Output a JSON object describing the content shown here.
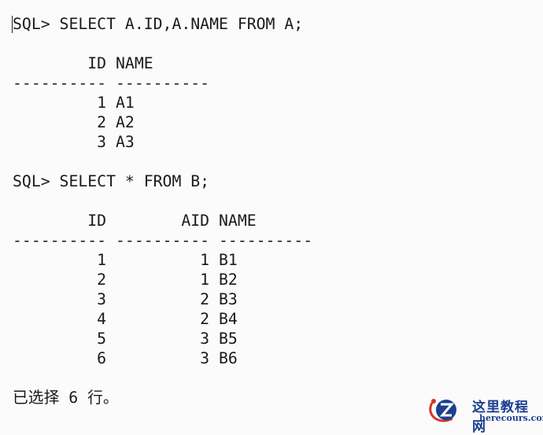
{
  "console": {
    "lines": [
      "SQL> SELECT A.ID,A.NAME FROM A;",
      "",
      "        ID NAME",
      "---------- ----------",
      "         1 A1",
      "         2 A2",
      "         3 A3",
      "",
      "SQL> SELECT * FROM B;",
      "",
      "        ID        AID NAME",
      "---------- ---------- ----------",
      "         1          1 B1",
      "         2          1 B2",
      "         3          2 B3",
      "         4          2 B4",
      "         5          3 B5",
      "         6          3 B6",
      "",
      "已选择 6 行。"
    ]
  },
  "watermark": {
    "title": "这里教程网",
    "site": "herecours.com",
    "icon": "z-logo-icon",
    "color": "#1c3f8f"
  }
}
